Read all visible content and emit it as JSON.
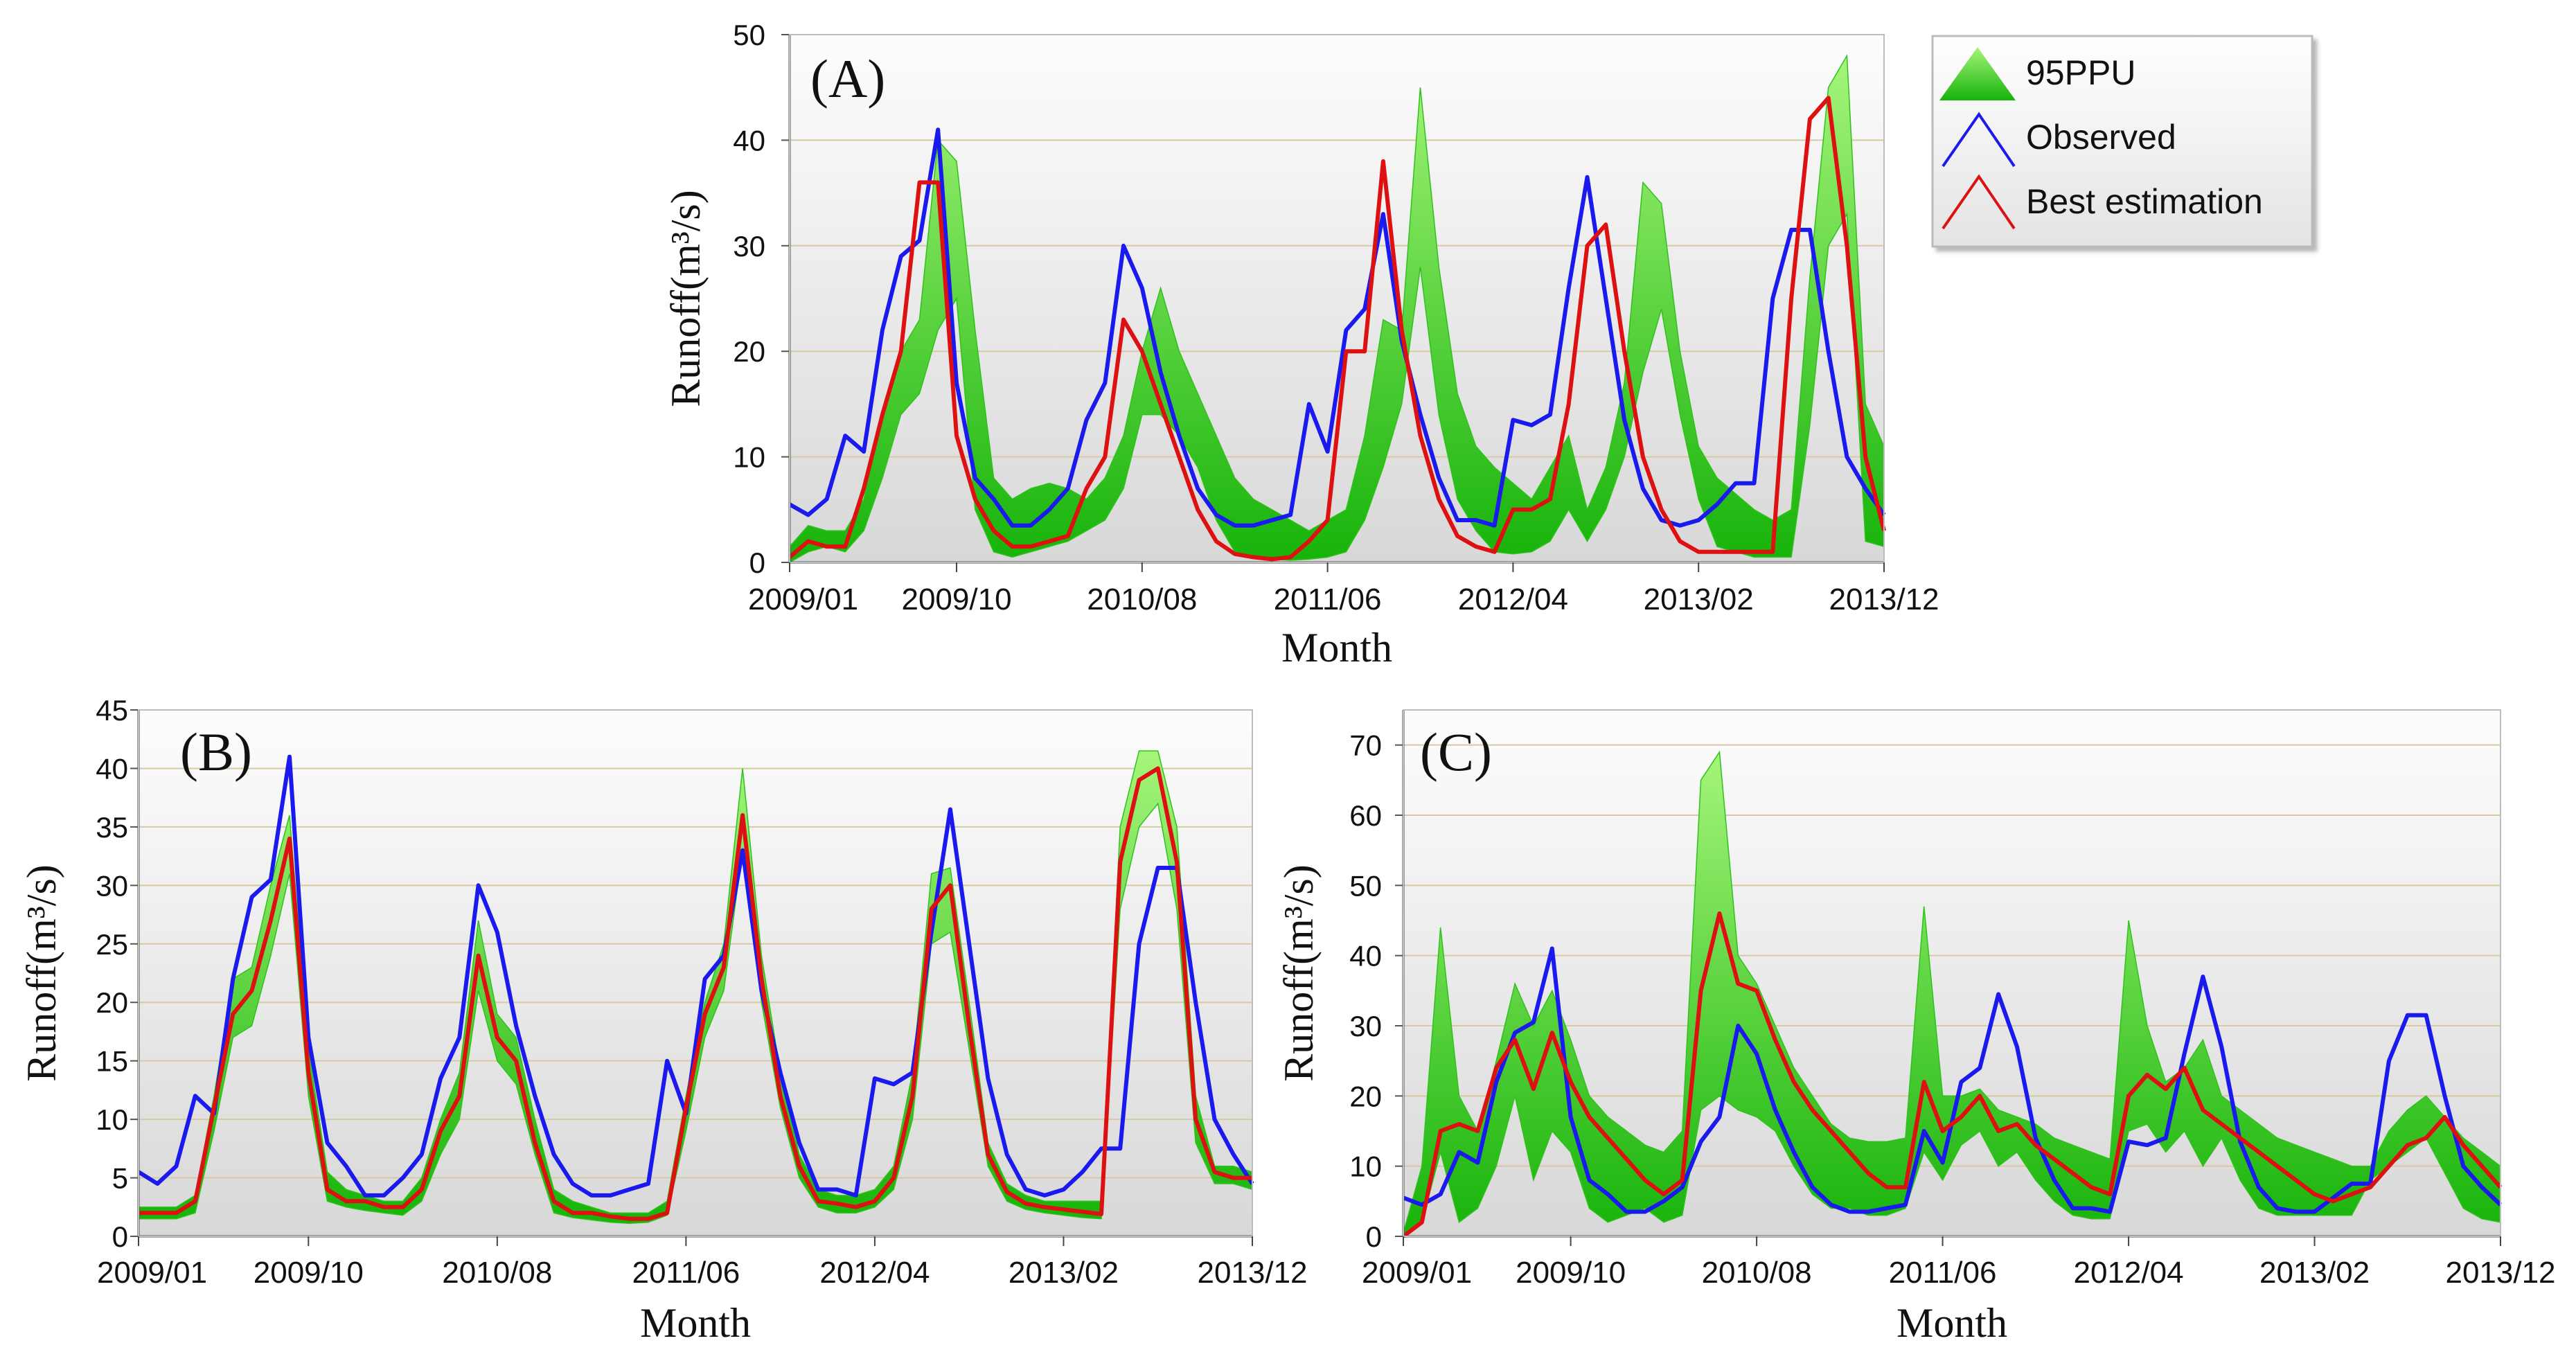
{
  "legend": {
    "items": [
      {
        "label": "95PPU",
        "kind": "band",
        "color": "#22bb00"
      },
      {
        "label": "Observed",
        "kind": "line",
        "color": "#1a1aee"
      },
      {
        "label": "Best estimation",
        "kind": "line",
        "color": "#dd1111"
      }
    ]
  },
  "colors": {
    "band_light": "#9ef06a",
    "band_dark": "#1fb80c",
    "observed": "#1a1aee",
    "best": "#dd1111",
    "grid": "#d9c9a3"
  },
  "chart_data": [
    {
      "type": "line",
      "panel_label": "(A)",
      "title": "",
      "xlabel": "Month",
      "ylabel": "Runoff(m³/s)",
      "ylim": [
        0,
        50
      ],
      "yticks": [
        0,
        10,
        20,
        30,
        40,
        50
      ],
      "x_start": "2009/01",
      "n_months": 60,
      "xtick_labels": [
        "2009/01",
        "2009/10",
        "2010/08",
        "2011/06",
        "2012/04",
        "2013/02",
        "2013/12"
      ],
      "xtick_index": [
        0,
        9,
        19,
        29,
        39,
        49,
        59
      ],
      "grid": true,
      "series": [
        {
          "name": "95PPU",
          "kind": "band",
          "upper": [
            1.5,
            3.5,
            3,
            3,
            6,
            14,
            20,
            23,
            40,
            38,
            22,
            8,
            6,
            7,
            7.5,
            7,
            6,
            8,
            12,
            20,
            26,
            20,
            16,
            12,
            8,
            6,
            5,
            4,
            3,
            4,
            5,
            12,
            23,
            22,
            45,
            28,
            16,
            11,
            9,
            7.5,
            6,
            9,
            12,
            5,
            9,
            17,
            36,
            34,
            20,
            11,
            8,
            6.5,
            5,
            4,
            5,
            27,
            45,
            48,
            15,
            11
          ],
          "lower": [
            0,
            1,
            1.5,
            1,
            3,
            8,
            14,
            16,
            22,
            25,
            5,
            1,
            0.5,
            1,
            1.5,
            2,
            3,
            4,
            7,
            14,
            14,
            12,
            9,
            4,
            1,
            0.5,
            0.3,
            0.2,
            0.3,
            0.5,
            1,
            4,
            9,
            15,
            28,
            14,
            6,
            3,
            1,
            0.8,
            1,
            2,
            5,
            2,
            5,
            10,
            18,
            24,
            14,
            6,
            1.5,
            1,
            0.5,
            0.5,
            0.5,
            13,
            30,
            33,
            2,
            1.5
          ]
        },
        {
          "name": "Observed",
          "kind": "line",
          "values": [
            5.5,
            4.5,
            6,
            12,
            10.5,
            22,
            29,
            30.5,
            41,
            17,
            8,
            6,
            3.5,
            3.5,
            5,
            7,
            13.5,
            17,
            30,
            26,
            18,
            12,
            7,
            4.5,
            3.5,
            3.5,
            4,
            4.5,
            15,
            10.5,
            22,
            24,
            33,
            21,
            14,
            8,
            4,
            4,
            3.5,
            13.5,
            13,
            14,
            26,
            36.5,
            25,
            13.5,
            7,
            4,
            3.5,
            4,
            5.5,
            7.5,
            7.5,
            25,
            31.5,
            31.5,
            20,
            10,
            7,
            4.5
          ]
        },
        {
          "name": "Best estimation",
          "kind": "line",
          "values": [
            0.5,
            2,
            1.5,
            1.5,
            7,
            14,
            20,
            36,
            36,
            12,
            6,
            3,
            1.5,
            1.5,
            2,
            2.5,
            7,
            10,
            23,
            20,
            15,
            10,
            5,
            2,
            0.8,
            0.5,
            0.3,
            0.5,
            2,
            4,
            20,
            20,
            38,
            22,
            12,
            6,
            2.5,
            1.5,
            1,
            5,
            5,
            6,
            15,
            30,
            32,
            20,
            10,
            5,
            2,
            1,
            1,
            1,
            1,
            1,
            25,
            42,
            44,
            30,
            10,
            3
          ]
        }
      ]
    },
    {
      "type": "line",
      "panel_label": "(B)",
      "title": "",
      "xlabel": "Month",
      "ylabel": "Runoff(m³/s)",
      "ylim": [
        0,
        45
      ],
      "yticks": [
        0,
        5,
        10,
        15,
        20,
        25,
        30,
        35,
        40,
        45
      ],
      "x_start": "2009/01",
      "n_months": 60,
      "xtick_labels": [
        "2009/01",
        "2009/10",
        "2010/08",
        "2011/06",
        "2012/04",
        "2013/02",
        "2013/12"
      ],
      "xtick_index": [
        0,
        9,
        19,
        29,
        39,
        49,
        59
      ],
      "grid": true,
      "series": [
        {
          "name": "95PPU",
          "kind": "band",
          "upper": [
            2.5,
            2.5,
            2.5,
            3.5,
            12,
            22,
            23,
            30,
            36,
            16,
            5.5,
            4,
            3.5,
            3,
            3,
            5,
            10,
            14,
            27,
            19,
            17,
            10,
            4,
            3,
            2.5,
            2,
            2,
            2,
            3,
            12,
            20,
            25,
            40,
            24,
            14,
            7,
            4,
            3.5,
            3.5,
            4,
            6,
            14,
            31,
            31.5,
            20,
            8,
            4.5,
            3.5,
            3,
            3,
            3,
            3,
            35,
            41.5,
            41.5,
            35,
            12,
            6,
            6,
            5.5
          ],
          "lower": [
            1.5,
            1.5,
            1.5,
            2,
            9,
            17,
            18,
            24,
            31,
            12,
            3,
            2.5,
            2.2,
            2,
            1.8,
            3,
            7,
            10,
            21,
            15,
            13,
            7,
            2,
            1.6,
            1.4,
            1.2,
            1.1,
            1.2,
            1.8,
            9,
            17,
            21,
            33,
            20,
            11,
            5,
            2.5,
            2,
            2,
            2.5,
            4,
            10,
            25,
            26,
            16,
            6,
            3,
            2.3,
            2,
            1.8,
            1.6,
            1.5,
            28,
            35,
            37,
            28,
            8,
            4.5,
            4.5,
            4
          ]
        },
        {
          "name": "Observed",
          "kind": "line",
          "values": [
            5.5,
            4.5,
            6,
            12,
            10.5,
            22,
            29,
            30.5,
            41,
            17,
            8,
            6,
            3.5,
            3.5,
            5,
            7,
            13.5,
            17,
            30,
            26,
            18,
            12,
            7,
            4.5,
            3.5,
            3.5,
            4,
            4.5,
            15,
            10.5,
            22,
            24,
            33,
            21,
            14,
            8,
            4,
            4,
            3.5,
            13.5,
            13,
            14,
            26,
            36.5,
            25,
            13.5,
            7,
            4,
            3.5,
            4,
            5.5,
            7.5,
            7.5,
            25,
            31.5,
            31.5,
            20,
            10,
            7,
            4.5
          ]
        },
        {
          "name": "Best estimation",
          "kind": "line",
          "values": [
            2,
            2,
            2,
            3,
            11,
            19,
            21,
            27,
            34,
            14,
            4,
            3,
            3,
            2.5,
            2.5,
            4,
            9,
            12,
            24,
            17,
            15,
            8,
            3,
            2,
            2,
            1.7,
            1.5,
            1.5,
            2,
            11,
            19,
            23,
            36,
            22,
            12,
            6,
            3,
            2.8,
            2.5,
            3,
            5,
            12,
            28,
            30,
            18,
            7,
            3.8,
            2.8,
            2.5,
            2.3,
            2.1,
            1.9,
            32,
            39,
            40,
            32,
            10,
            5.5,
            5,
            5
          ]
        }
      ]
    },
    {
      "type": "line",
      "panel_label": "(C)",
      "title": "",
      "xlabel": "Month",
      "ylabel": "Runoff(m³/s)",
      "ylim": [
        0,
        75
      ],
      "yticks": [
        0,
        10,
        20,
        30,
        40,
        50,
        60,
        70
      ],
      "x_start": "2009/01",
      "n_months": 60,
      "xtick_labels": [
        "2009/01",
        "2009/10",
        "2010/08",
        "2011/06",
        "2012/04",
        "2013/02",
        "2013/12"
      ],
      "xtick_index": [
        0,
        9,
        19,
        29,
        39,
        49,
        59
      ],
      "grid": true,
      "series": [
        {
          "name": "95PPU",
          "kind": "band",
          "upper": [
            0.5,
            10,
            44,
            20,
            15,
            25,
            36,
            30,
            35,
            28,
            20,
            17,
            15,
            13,
            12,
            15,
            65,
            69,
            40,
            36,
            30,
            24,
            20,
            16,
            14,
            13.5,
            13.5,
            14,
            47,
            20,
            20,
            21,
            18,
            17,
            16,
            14,
            13,
            12,
            11,
            45,
            30,
            22,
            24,
            28,
            20,
            18,
            16,
            14,
            13,
            12,
            11,
            10,
            10,
            15,
            18,
            20,
            17,
            14,
            12,
            10
          ],
          "lower": [
            0,
            2,
            12,
            2,
            4,
            10,
            20,
            8,
            15,
            12,
            4,
            2,
            3,
            4,
            2,
            3,
            18,
            20,
            18,
            17,
            15,
            10,
            6,
            4,
            4,
            3,
            3,
            4,
            12,
            8,
            13,
            15,
            10,
            12,
            8,
            5,
            3,
            2.5,
            2.5,
            15,
            16,
            12,
            15,
            10,
            14,
            8,
            4,
            3,
            3,
            3,
            3,
            3,
            8,
            10,
            12,
            14,
            9,
            4,
            2.5,
            2
          ]
        },
        {
          "name": "Observed",
          "kind": "line",
          "values": [
            5.5,
            4.5,
            6,
            12,
            10.5,
            22,
            29,
            30.5,
            41,
            17,
            8,
            6,
            3.5,
            3.5,
            5,
            7,
            13.5,
            17,
            30,
            26,
            18,
            12,
            7,
            4.5,
            3.5,
            3.5,
            4,
            4.5,
            15,
            10.5,
            22,
            24,
            34.5,
            27,
            14,
            8,
            4,
            4,
            3.5,
            13.5,
            13,
            14,
            26,
            37,
            27,
            13.5,
            7,
            4,
            3.5,
            3.5,
            5.5,
            7.5,
            7.5,
            25,
            31.5,
            31.5,
            20,
            10,
            7,
            4.5
          ]
        },
        {
          "name": "Best estimation",
          "kind": "line",
          "values": [
            0,
            2,
            15,
            16,
            15,
            24,
            28,
            21,
            29,
            22,
            17,
            14,
            11,
            8,
            6,
            8,
            35,
            46,
            36,
            35,
            28,
            22,
            18,
            15,
            12,
            9,
            7,
            7,
            22,
            15,
            17,
            20,
            15,
            16,
            13,
            11,
            9,
            7,
            6,
            20,
            23,
            21,
            24,
            18,
            16,
            14,
            12,
            10,
            8,
            6,
            5,
            6,
            7,
            10,
            13,
            14,
            17,
            13,
            10,
            7
          ]
        }
      ]
    }
  ]
}
